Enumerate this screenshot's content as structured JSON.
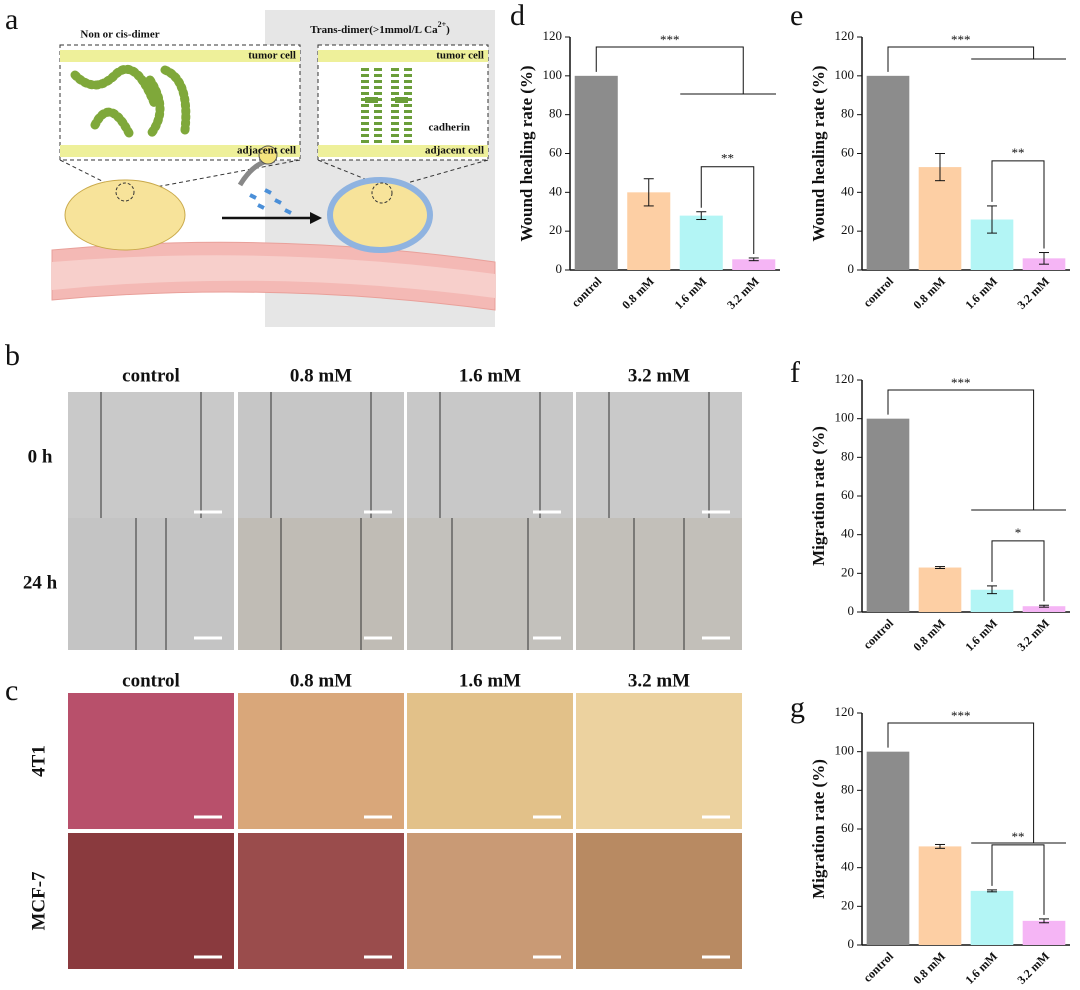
{
  "figure": {
    "panel_labels": [
      "a",
      "b",
      "c",
      "d",
      "e",
      "f",
      "g"
    ],
    "a": {
      "left_title": "Non or cis-dimer",
      "right_title": [
        "Trans-dimer(>1mmol/L Ca",
        "2+",
        ")"
      ],
      "left_labels": [
        "tumor cell",
        "adjacent cell"
      ],
      "right_labels": [
        "tumor cell",
        "cadherin",
        "adjacent cell"
      ]
    },
    "b": {
      "columns": [
        "control",
        "0.8 mM",
        "1.6 mM",
        "3.2 mM"
      ],
      "rows": [
        "0 h",
        "24 h"
      ]
    },
    "c": {
      "columns": [
        "control",
        "0.8 mM",
        "1.6 mM",
        "3.2 mM"
      ],
      "rows": [
        "4T1",
        "MCF-7"
      ]
    }
  },
  "chart_data": [
    {
      "type": "bar",
      "ylabel": "Wound healing rate (%)",
      "categories": [
        "control",
        "0.8 mM",
        "1.6 mM",
        "3.2 mM"
      ],
      "values": [
        100,
        40,
        28,
        5.5
      ],
      "errors": [
        null,
        7,
        2,
        0.7
      ],
      "colors": [
        "#8c8c8c",
        "#fdcfa4",
        "#b3f5f5",
        "#f5b5f5"
      ],
      "ylim": [
        0,
        120
      ],
      "yticks": [
        0,
        20,
        40,
        60,
        80,
        100,
        120
      ],
      "significance": [
        "***",
        "**"
      ]
    },
    {
      "type": "bar",
      "ylabel": "Wound healing rate (%)",
      "categories": [
        "control",
        "0.8 mM",
        "1.6 mM",
        "3.2 mM"
      ],
      "values": [
        100,
        53,
        26,
        6
      ],
      "errors": [
        null,
        7,
        7,
        3
      ],
      "colors": [
        "#8c8c8c",
        "#fdcfa4",
        "#b3f5f5",
        "#f5b5f5"
      ],
      "ylim": [
        0,
        120
      ],
      "yticks": [
        0,
        20,
        40,
        60,
        80,
        100,
        120
      ],
      "significance": [
        "***",
        "**"
      ]
    },
    {
      "type": "bar",
      "ylabel": "Migration rate (%)",
      "categories": [
        "control",
        "0.8 mM",
        "1.6 mM",
        "3.2 mM"
      ],
      "values": [
        100,
        23,
        11.5,
        3
      ],
      "errors": [
        null,
        0.5,
        2,
        0.5
      ],
      "colors": [
        "#8c8c8c",
        "#fdcfa4",
        "#b3f5f5",
        "#f5b5f5"
      ],
      "ylim": [
        0,
        120
      ],
      "yticks": [
        0,
        20,
        40,
        60,
        80,
        100,
        120
      ],
      "significance": [
        "***",
        "*"
      ]
    },
    {
      "type": "bar",
      "ylabel": "Migration rate (%)",
      "categories": [
        "control",
        "0.8 mM",
        "1.6 mM",
        "3.2 mM"
      ],
      "values": [
        100,
        51,
        28,
        12.5
      ],
      "errors": [
        null,
        1,
        0.5,
        1
      ],
      "colors": [
        "#8c8c8c",
        "#fdcfa4",
        "#b3f5f5",
        "#f5b5f5"
      ],
      "ylim": [
        0,
        120
      ],
      "yticks": [
        0,
        20,
        40,
        60,
        80,
        100,
        120
      ],
      "significance": [
        "***",
        "**"
      ]
    }
  ]
}
